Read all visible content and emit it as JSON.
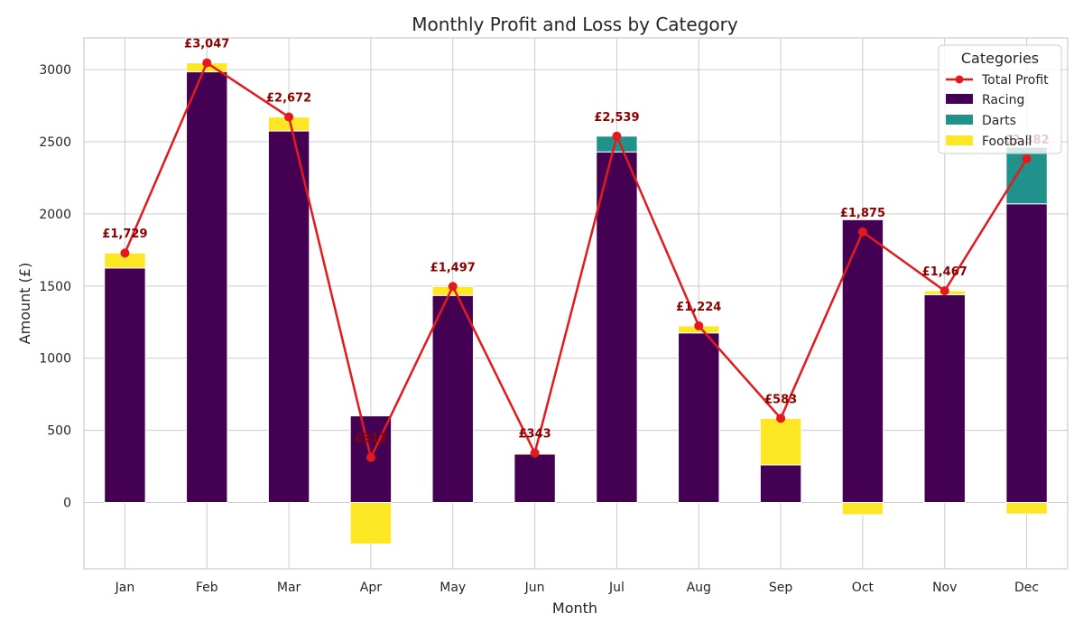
{
  "chart_data": {
    "type": "bar",
    "stacked": true,
    "title": "Monthly Profit and Loss by Category",
    "xlabel": "Month",
    "ylabel": "Amount (£)",
    "ylim": [
      -460,
      3220
    ],
    "yticks": [
      0,
      500,
      1000,
      1500,
      2000,
      2500,
      3000
    ],
    "grid": true,
    "categories": [
      "Jan",
      "Feb",
      "Mar",
      "Apr",
      "May",
      "Jun",
      "Jul",
      "Aug",
      "Sep",
      "Oct",
      "Nov",
      "Dec"
    ],
    "series": [
      {
        "name": "Racing",
        "color": "#440154",
        "values": [
          1625,
          2985,
          2575,
          600,
          1435,
          335,
          2430,
          1175,
          260,
          1960,
          1440,
          2070
        ]
      },
      {
        "name": "Darts",
        "color": "#21918c",
        "values": [
          0,
          0,
          0,
          0,
          0,
          0,
          109,
          0,
          0,
          0,
          0,
          392
        ]
      },
      {
        "name": "Football",
        "color": "#fde725",
        "values": [
          104,
          62,
          97,
          -288,
          62,
          8,
          0,
          49,
          323,
          -85,
          27,
          -80
        ]
      }
    ],
    "line": {
      "name": "Total Profit",
      "color": "#e31a1c",
      "values": [
        1729,
        3047,
        2672,
        312,
        1497,
        343,
        2539,
        1224,
        583,
        1875,
        1467,
        2382
      ],
      "labels": [
        "£1,729",
        "£3,047",
        "£2,672",
        "£312",
        "£1,497",
        "£343",
        "£2,539",
        "£1,224",
        "£583",
        "£1,875",
        "£1,467",
        "£2,382"
      ]
    },
    "legend": {
      "title": "Categories",
      "placement": "top-right",
      "entries": [
        "Total Profit",
        "Racing",
        "Darts",
        "Football"
      ]
    }
  }
}
